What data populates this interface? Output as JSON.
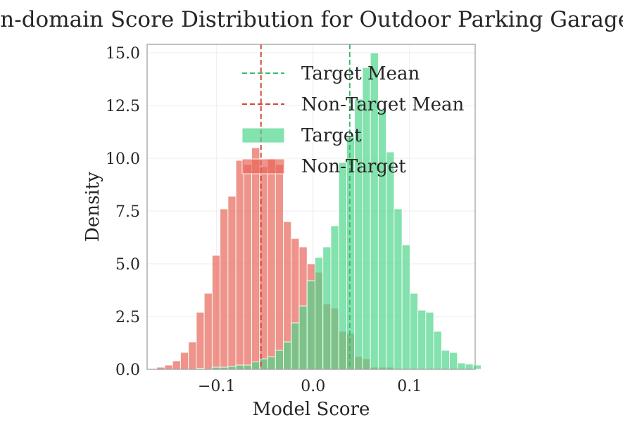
{
  "chart_data": {
    "type": "histogram",
    "title": "In-domain Score Distribution for Outdoor Parking Garage",
    "xlabel": "Model Score",
    "ylabel": "Density",
    "xlim": [
      -0.172,
      0.168
    ],
    "ylim": [
      0,
      15.4
    ],
    "xticks": [
      -0.1,
      0.0,
      0.1
    ],
    "xtick_labels": [
      "−0.1",
      "0.0",
      "0.1"
    ],
    "yticks": [
      0,
      2.5,
      5,
      7.5,
      10,
      12.5,
      15
    ],
    "ytick_labels": [
      "0.0",
      "2.5",
      "5.0",
      "7.5",
      "10.0",
      "12.5",
      "15.0"
    ],
    "grid": true,
    "legend_position": "upper-right",
    "series": [
      {
        "name": "Non-Target",
        "color": "#e8675a",
        "bin_start": -0.162,
        "bin_width": 0.0082,
        "values": [
          0.1,
          0.2,
          0.4,
          0.8,
          1.3,
          2.7,
          3.6,
          5.4,
          7.6,
          8.2,
          9.9,
          9.7,
          10.5,
          9.6,
          10.0,
          9.7,
          7.0,
          6.2,
          5.8,
          5.0,
          4.6,
          3.1,
          2.9,
          1.8,
          1.7,
          0.6,
          0.5,
          0.1,
          0.1,
          0.1
        ],
        "mean": -0.054
      },
      {
        "name": "Target",
        "color": "#4fd68a",
        "bin_start": -0.121,
        "bin_width": 0.0082,
        "values": [
          0.05,
          0.0,
          0.1,
          0.1,
          0.15,
          0.2,
          0.2,
          0.35,
          0.5,
          0.6,
          0.9,
          1.3,
          2.2,
          3.0,
          4.2,
          5.3,
          5.8,
          6.8,
          9.8,
          11.0,
          12.8,
          14.3,
          15.0,
          12.3,
          10.3,
          7.6,
          5.9,
          3.6,
          2.8,
          2.7,
          1.8,
          0.9,
          0.8,
          0.3,
          0.25,
          0.2
        ],
        "mean": 0.038
      }
    ],
    "mean_lines": [
      {
        "name": "Target Mean",
        "x": 0.038,
        "color": "#3dba6f",
        "style": "dashed"
      },
      {
        "name": "Non-Target Mean",
        "x": -0.054,
        "color": "#cc4b3a",
        "style": "dashed"
      }
    ],
    "legend": [
      {
        "label": "Target Mean",
        "kind": "line",
        "color": "#3dba6f"
      },
      {
        "label": "Non-Target Mean",
        "kind": "line",
        "color": "#cc4b3a"
      },
      {
        "label": "Target",
        "kind": "patch",
        "color": "#4fd68a"
      },
      {
        "label": "Non-Target",
        "kind": "patch",
        "color": "#e8675a"
      }
    ]
  }
}
